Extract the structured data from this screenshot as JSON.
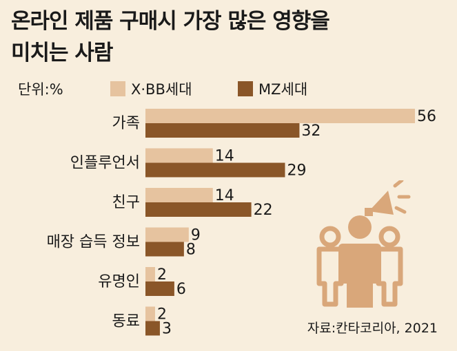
{
  "title_lines": [
    "온라인 제품 구매시 가장 많은 영향을",
    "미치는 사람"
  ],
  "unit": "단위:%",
  "source": "자료:칸타코리아, 2021",
  "colors": {
    "background": "#f8eedd",
    "series1": "#e6c39f",
    "series2": "#8a5628",
    "icon": "#d9a77a"
  },
  "icon_name": "person-with-megaphone-icon",
  "chart_data": {
    "type": "bar",
    "orientation": "horizontal",
    "title": "온라인 제품 구매시 가장 많은 영향을 미치는 사람",
    "unit": "%",
    "categories": [
      "가족",
      "인플루언서",
      "친구",
      "매장 습득 정보",
      "유명인",
      "동료"
    ],
    "series": [
      {
        "name": "X·BB세대",
        "values": [
          56,
          14,
          14,
          9,
          2,
          2
        ]
      },
      {
        "name": "MZ세대",
        "values": [
          32,
          29,
          22,
          8,
          6,
          3
        ]
      }
    ],
    "xlim": [
      0,
      56
    ],
    "grid": false,
    "legend": "top"
  }
}
